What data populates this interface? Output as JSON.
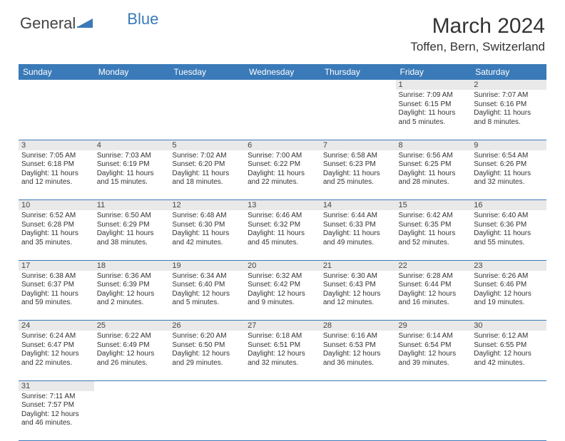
{
  "logo": {
    "part1": "General",
    "part2": "Blue"
  },
  "title": "March 2024",
  "location": "Toffen, Bern, Switzerland",
  "weekdays": [
    "Sunday",
    "Monday",
    "Tuesday",
    "Wednesday",
    "Thursday",
    "Friday",
    "Saturday"
  ],
  "colors": {
    "header_bg": "#3a7ab8",
    "header_fg": "#ffffff",
    "daynum_bg": "#e9e9e9",
    "border": "#3a7ab8",
    "text": "#333333"
  },
  "weeks": [
    [
      null,
      null,
      null,
      null,
      null,
      {
        "n": "1",
        "sr": "7:09 AM",
        "ss": "6:15 PM",
        "dl": "11 hours and 5 minutes."
      },
      {
        "n": "2",
        "sr": "7:07 AM",
        "ss": "6:16 PM",
        "dl": "11 hours and 8 minutes."
      }
    ],
    [
      {
        "n": "3",
        "sr": "7:05 AM",
        "ss": "6:18 PM",
        "dl": "11 hours and 12 minutes."
      },
      {
        "n": "4",
        "sr": "7:03 AM",
        "ss": "6:19 PM",
        "dl": "11 hours and 15 minutes."
      },
      {
        "n": "5",
        "sr": "7:02 AM",
        "ss": "6:20 PM",
        "dl": "11 hours and 18 minutes."
      },
      {
        "n": "6",
        "sr": "7:00 AM",
        "ss": "6:22 PM",
        "dl": "11 hours and 22 minutes."
      },
      {
        "n": "7",
        "sr": "6:58 AM",
        "ss": "6:23 PM",
        "dl": "11 hours and 25 minutes."
      },
      {
        "n": "8",
        "sr": "6:56 AM",
        "ss": "6:25 PM",
        "dl": "11 hours and 28 minutes."
      },
      {
        "n": "9",
        "sr": "6:54 AM",
        "ss": "6:26 PM",
        "dl": "11 hours and 32 minutes."
      }
    ],
    [
      {
        "n": "10",
        "sr": "6:52 AM",
        "ss": "6:28 PM",
        "dl": "11 hours and 35 minutes."
      },
      {
        "n": "11",
        "sr": "6:50 AM",
        "ss": "6:29 PM",
        "dl": "11 hours and 38 minutes."
      },
      {
        "n": "12",
        "sr": "6:48 AM",
        "ss": "6:30 PM",
        "dl": "11 hours and 42 minutes."
      },
      {
        "n": "13",
        "sr": "6:46 AM",
        "ss": "6:32 PM",
        "dl": "11 hours and 45 minutes."
      },
      {
        "n": "14",
        "sr": "6:44 AM",
        "ss": "6:33 PM",
        "dl": "11 hours and 49 minutes."
      },
      {
        "n": "15",
        "sr": "6:42 AM",
        "ss": "6:35 PM",
        "dl": "11 hours and 52 minutes."
      },
      {
        "n": "16",
        "sr": "6:40 AM",
        "ss": "6:36 PM",
        "dl": "11 hours and 55 minutes."
      }
    ],
    [
      {
        "n": "17",
        "sr": "6:38 AM",
        "ss": "6:37 PM",
        "dl": "11 hours and 59 minutes."
      },
      {
        "n": "18",
        "sr": "6:36 AM",
        "ss": "6:39 PM",
        "dl": "12 hours and 2 minutes."
      },
      {
        "n": "19",
        "sr": "6:34 AM",
        "ss": "6:40 PM",
        "dl": "12 hours and 5 minutes."
      },
      {
        "n": "20",
        "sr": "6:32 AM",
        "ss": "6:42 PM",
        "dl": "12 hours and 9 minutes."
      },
      {
        "n": "21",
        "sr": "6:30 AM",
        "ss": "6:43 PM",
        "dl": "12 hours and 12 minutes."
      },
      {
        "n": "22",
        "sr": "6:28 AM",
        "ss": "6:44 PM",
        "dl": "12 hours and 16 minutes."
      },
      {
        "n": "23",
        "sr": "6:26 AM",
        "ss": "6:46 PM",
        "dl": "12 hours and 19 minutes."
      }
    ],
    [
      {
        "n": "24",
        "sr": "6:24 AM",
        "ss": "6:47 PM",
        "dl": "12 hours and 22 minutes."
      },
      {
        "n": "25",
        "sr": "6:22 AM",
        "ss": "6:49 PM",
        "dl": "12 hours and 26 minutes."
      },
      {
        "n": "26",
        "sr": "6:20 AM",
        "ss": "6:50 PM",
        "dl": "12 hours and 29 minutes."
      },
      {
        "n": "27",
        "sr": "6:18 AM",
        "ss": "6:51 PM",
        "dl": "12 hours and 32 minutes."
      },
      {
        "n": "28",
        "sr": "6:16 AM",
        "ss": "6:53 PM",
        "dl": "12 hours and 36 minutes."
      },
      {
        "n": "29",
        "sr": "6:14 AM",
        "ss": "6:54 PM",
        "dl": "12 hours and 39 minutes."
      },
      {
        "n": "30",
        "sr": "6:12 AM",
        "ss": "6:55 PM",
        "dl": "12 hours and 42 minutes."
      }
    ],
    [
      {
        "n": "31",
        "sr": "7:11 AM",
        "ss": "7:57 PM",
        "dl": "12 hours and 46 minutes."
      },
      null,
      null,
      null,
      null,
      null,
      null
    ]
  ],
  "labels": {
    "sunrise": "Sunrise: ",
    "sunset": "Sunset: ",
    "daylight": "Daylight: "
  }
}
